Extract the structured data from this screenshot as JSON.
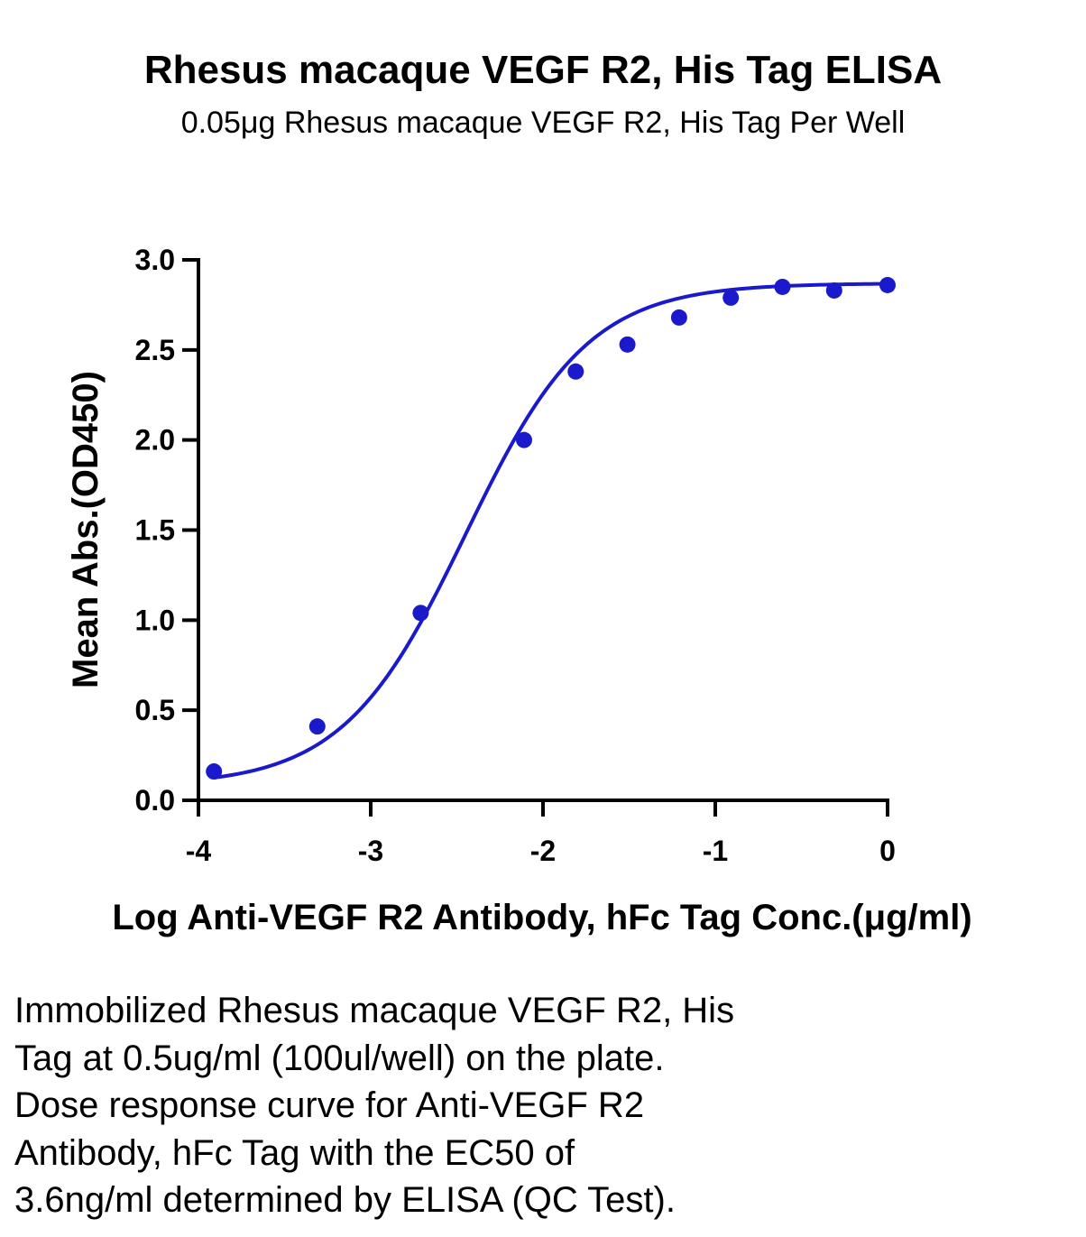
{
  "chart_data": {
    "type": "scatter",
    "title": "Rhesus macaque VEGF R2, His Tag ELISA",
    "subtitle": "0.05μg Rhesus macaque VEGF R2, His Tag Per Well",
    "xlabel": "Log Anti-VEGF R2 Antibody, hFc Tag Conc.(μg/ml)",
    "ylabel": "Mean Abs.(OD450)",
    "xlim": [
      -4,
      0
    ],
    "ylim": [
      0,
      3
    ],
    "x_ticks": [
      "-4",
      "-3",
      "-2",
      "-1",
      "0"
    ],
    "y_ticks": [
      "0.0",
      "0.5",
      "1.0",
      "1.5",
      "2.0",
      "2.5",
      "3.0"
    ],
    "grid": false,
    "legend": "none",
    "series": [
      {
        "x": [
          -3.91,
          -3.31,
          -2.71,
          -2.11,
          -1.81,
          -1.51,
          -1.21,
          -0.91,
          -0.61,
          -0.31,
          0.0
        ],
        "y": [
          0.16,
          0.41,
          1.04,
          2.0,
          2.38,
          2.53,
          2.68,
          2.79,
          2.85,
          2.83,
          2.86
        ],
        "color": "#1a1acc",
        "fit": "four-parameter logistic"
      }
    ]
  },
  "caption": {
    "lines": [
      "Immobilized Rhesus macaque VEGF R2, His",
      "Tag at 0.5ug/ml (100ul/well) on the plate.",
      "Dose response curve for Anti-VEGF R2",
      "Antibody, hFc Tag with the EC50 of",
      "3.6ng/ml determined by ELISA (QC Test)."
    ]
  }
}
